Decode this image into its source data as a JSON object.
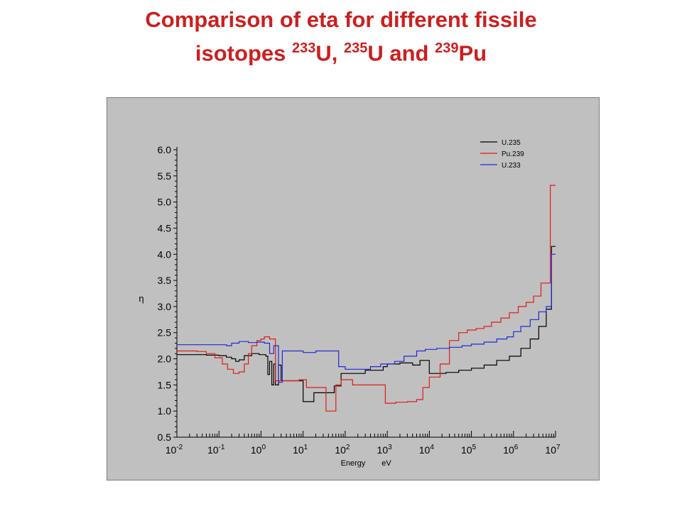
{
  "slide": {
    "title_line1": "Comparison of eta for different fissile",
    "title_line2": {
      "word": "isotopes",
      "iso1_mass": "233",
      "iso1_sym": "U,",
      "iso2_mass": "235",
      "iso2_sym": "U and",
      "iso3_mass": "239",
      "iso3_sym": "Pu"
    }
  },
  "chart_data": {
    "type": "line",
    "step": true,
    "ylabel": "η",
    "xlabel_parts": [
      "Energy",
      "eV"
    ],
    "x_scale": "log",
    "xlim": [
      0.01,
      10000000
    ],
    "ylim": [
      0.5,
      6.0
    ],
    "y_ticks": [
      "0.5",
      "1.0",
      "1.5",
      "2.0",
      "2.5",
      "3.0",
      "3.5",
      "4.0",
      "4.5",
      "5.0",
      "5.5",
      "6.0"
    ],
    "x_ticks": [
      {
        "base": "10",
        "exp": "-2",
        "value": 0.01
      },
      {
        "base": "10",
        "exp": "-1",
        "value": 0.1
      },
      {
        "base": "10",
        "exp": "0",
        "value": 1
      },
      {
        "base": "10",
        "exp": "1",
        "value": 10
      },
      {
        "base": "10",
        "exp": "2",
        "value": 100
      },
      {
        "base": "10",
        "exp": "3",
        "value": 1000
      },
      {
        "base": "10",
        "exp": "4",
        "value": 10000
      },
      {
        "base": "10",
        "exp": "5",
        "value": 100000
      },
      {
        "base": "10",
        "exp": "6",
        "value": 1000000
      },
      {
        "base": "10",
        "exp": "7",
        "value": 10000000
      }
    ],
    "grid": false,
    "legend_position": "top-right",
    "series": [
      {
        "name": "U.235",
        "color": "#000000",
        "points": [
          [
            0.01,
            2.08
          ],
          [
            0.05,
            2.07
          ],
          [
            0.1,
            2.06
          ],
          [
            0.15,
            2.03
          ],
          [
            0.2,
            2.0
          ],
          [
            0.25,
            1.95
          ],
          [
            0.3,
            1.98
          ],
          [
            0.4,
            2.06
          ],
          [
            0.6,
            2.1
          ],
          [
            0.9,
            2.08
          ],
          [
            1.3,
            2.05
          ],
          [
            1.45,
            1.7
          ],
          [
            1.6,
            1.95
          ],
          [
            1.8,
            1.5
          ],
          [
            2.0,
            1.9
          ],
          [
            2.2,
            1.5
          ],
          [
            2.6,
            1.88
          ],
          [
            3.0,
            1.58
          ],
          [
            10,
            1.18
          ],
          [
            18,
            1.35
          ],
          [
            50,
            1.35
          ],
          [
            55,
            1.48
          ],
          [
            80,
            1.72
          ],
          [
            150,
            1.72
          ],
          [
            300,
            1.78
          ],
          [
            800,
            1.85
          ],
          [
            1000,
            1.9
          ],
          [
            2000,
            1.92
          ],
          [
            4000,
            1.88
          ],
          [
            6000,
            1.97
          ],
          [
            10000,
            1.72
          ],
          [
            25000,
            1.74
          ],
          [
            50000,
            1.78
          ],
          [
            100000,
            1.82
          ],
          [
            200000,
            1.88
          ],
          [
            400000,
            1.97
          ],
          [
            800000,
            2.05
          ],
          [
            1500000,
            2.2
          ],
          [
            2500000,
            2.38
          ],
          [
            4000000,
            2.62
          ],
          [
            6000000,
            2.95
          ],
          [
            8000000,
            4.15
          ],
          [
            10000000,
            4.15
          ]
        ]
      },
      {
        "name": "Pu.239",
        "color": "#e01b1b",
        "points": [
          [
            0.01,
            2.15
          ],
          [
            0.03,
            2.14
          ],
          [
            0.05,
            2.1
          ],
          [
            0.08,
            2.02
          ],
          [
            0.12,
            1.9
          ],
          [
            0.16,
            1.8
          ],
          [
            0.22,
            1.72
          ],
          [
            0.3,
            1.75
          ],
          [
            0.4,
            1.9
          ],
          [
            0.5,
            2.1
          ],
          [
            0.6,
            2.25
          ],
          [
            0.8,
            2.35
          ],
          [
            1.0,
            2.38
          ],
          [
            1.2,
            2.42
          ],
          [
            1.6,
            2.38
          ],
          [
            2.2,
            1.58
          ],
          [
            8,
            1.6
          ],
          [
            12,
            1.45
          ],
          [
            25,
            1.45
          ],
          [
            35,
            1.0
          ],
          [
            60,
            1.5
          ],
          [
            80,
            1.6
          ],
          [
            150,
            1.5
          ],
          [
            400,
            1.5
          ],
          [
            900,
            1.15
          ],
          [
            1600,
            1.17
          ],
          [
            3000,
            1.18
          ],
          [
            5000,
            1.22
          ],
          [
            7000,
            1.45
          ],
          [
            10000,
            1.65
          ],
          [
            18000,
            1.9
          ],
          [
            30000,
            2.35
          ],
          [
            50000,
            2.5
          ],
          [
            80000,
            2.55
          ],
          [
            130000,
            2.58
          ],
          [
            200000,
            2.62
          ],
          [
            300000,
            2.7
          ],
          [
            500000,
            2.78
          ],
          [
            800000,
            2.88
          ],
          [
            1300000,
            3.0
          ],
          [
            2000000,
            3.08
          ],
          [
            3000000,
            3.2
          ],
          [
            4500000,
            3.45
          ],
          [
            6000000,
            3.45
          ],
          [
            7500000,
            5.32
          ],
          [
            10000000,
            5.32
          ]
        ]
      },
      {
        "name": "U.233",
        "color": "#1f2ad6",
        "points": [
          [
            0.01,
            2.27
          ],
          [
            0.1,
            2.27
          ],
          [
            0.15,
            2.25
          ],
          [
            0.2,
            2.3
          ],
          [
            0.3,
            2.33
          ],
          [
            0.5,
            2.31
          ],
          [
            0.8,
            2.32
          ],
          [
            1.2,
            2.3
          ],
          [
            1.6,
            2.1
          ],
          [
            2.0,
            2.25
          ],
          [
            2.6,
            1.55
          ],
          [
            3.2,
            2.15
          ],
          [
            10,
            2.12
          ],
          [
            20,
            2.15
          ],
          [
            60,
            2.15
          ],
          [
            70,
            1.85
          ],
          [
            100,
            1.8
          ],
          [
            200,
            1.8
          ],
          [
            400,
            1.85
          ],
          [
            700,
            1.9
          ],
          [
            1500,
            1.95
          ],
          [
            2500,
            2.05
          ],
          [
            5000,
            2.15
          ],
          [
            8000,
            2.18
          ],
          [
            15000,
            2.2
          ],
          [
            30000,
            2.22
          ],
          [
            60000,
            2.25
          ],
          [
            100000,
            2.28
          ],
          [
            200000,
            2.32
          ],
          [
            400000,
            2.38
          ],
          [
            700000,
            2.42
          ],
          [
            1000000,
            2.52
          ],
          [
            1500000,
            2.62
          ],
          [
            2500000,
            2.75
          ],
          [
            4000000,
            2.9
          ],
          [
            6000000,
            3.0
          ],
          [
            8000000,
            4.0
          ],
          [
            10000000,
            4.0
          ]
        ]
      }
    ]
  }
}
